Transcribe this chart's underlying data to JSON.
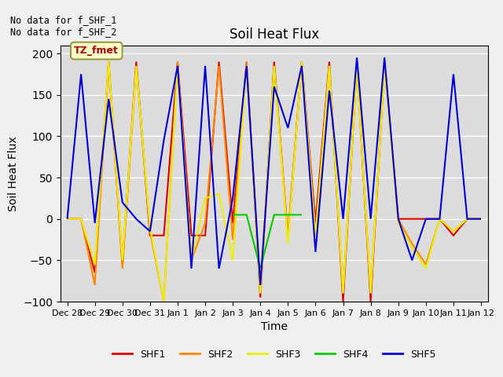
{
  "title": "Soil Heat Flux",
  "xlabel": "Time",
  "ylabel": "Soil Heat Flux",
  "ylim": [
    -100,
    210
  ],
  "yticks": [
    -100,
    -50,
    0,
    50,
    100,
    150,
    200
  ],
  "bg_color": "#dcdcdc",
  "fig_color": "#f0f0f0",
  "annotation_text": "No data for f_SHF_1\nNo data for f_SHF_2",
  "legend_box_label": "TZ_fmet",
  "series_order": [
    "SHF1",
    "SHF2",
    "SHF3",
    "SHF4",
    "SHF5"
  ],
  "series": {
    "SHF1": {
      "color": "#dd0000",
      "lw": 1.5,
      "x": [
        0,
        1,
        2,
        3,
        4,
        5,
        6,
        7,
        8,
        9,
        10,
        11,
        12,
        13,
        14,
        15,
        16,
        17,
        18,
        19,
        20,
        21,
        22,
        23,
        24,
        25,
        26,
        27,
        28,
        29,
        30
      ],
      "y": [
        0,
        0,
        -65,
        190,
        -55,
        190,
        -20,
        -20,
        190,
        -20,
        -20,
        190,
        -5,
        190,
        -95,
        190,
        -25,
        190,
        -5,
        190,
        -100,
        190,
        -100,
        190,
        0,
        0,
        0,
        0,
        -20,
        0,
        0
      ]
    },
    "SHF2": {
      "color": "#ff8800",
      "lw": 1.5,
      "x": [
        0,
        1,
        2,
        3,
        4,
        5,
        6,
        7,
        8,
        9,
        10,
        11,
        12,
        13,
        14,
        15,
        16,
        17,
        18,
        19,
        20,
        21,
        22,
        23,
        24,
        25,
        26,
        27,
        28,
        29,
        30
      ],
      "y": [
        0,
        0,
        -80,
        190,
        -60,
        185,
        -15,
        -100,
        190,
        -50,
        -5,
        185,
        -25,
        190,
        -90,
        185,
        -20,
        190,
        -20,
        185,
        -90,
        185,
        -90,
        185,
        0,
        -30,
        -55,
        0,
        -15,
        0,
        0
      ]
    },
    "SHF3": {
      "color": "#eeee00",
      "lw": 1.5,
      "x": [
        0,
        1,
        2,
        3,
        4,
        5,
        6,
        7,
        8,
        9,
        10,
        11,
        12,
        13,
        14,
        15,
        16,
        17,
        18,
        19,
        20,
        21,
        22,
        23,
        24,
        25,
        26,
        27,
        28,
        29,
        30
      ],
      "y": [
        0,
        0,
        -55,
        190,
        -50,
        185,
        -10,
        -100,
        185,
        -50,
        25,
        30,
        -50,
        185,
        -90,
        185,
        -30,
        190,
        -20,
        185,
        -90,
        185,
        -90,
        185,
        -5,
        -35,
        -60,
        0,
        -15,
        0,
        0
      ]
    },
    "SHF4": {
      "color": "#00cc00",
      "lw": 1.5,
      "x": [
        12,
        13,
        14,
        15,
        16,
        17
      ],
      "y": [
        5,
        5,
        -60,
        5,
        5,
        5
      ]
    },
    "SHF5": {
      "color": "#0000dd",
      "lw": 1.5,
      "x": [
        0,
        1,
        2,
        3,
        4,
        5,
        6,
        7,
        8,
        9,
        10,
        11,
        12,
        13,
        14,
        15,
        16,
        17,
        18,
        19,
        20,
        21,
        22,
        23,
        24,
        25,
        26,
        27,
        28,
        29,
        30
      ],
      "y": [
        0,
        175,
        -5,
        145,
        20,
        0,
        -15,
        95,
        185,
        -60,
        185,
        -60,
        25,
        185,
        -80,
        160,
        110,
        185,
        -40,
        155,
        0,
        195,
        0,
        195,
        0,
        -50,
        0,
        0,
        175,
        0,
        0
      ]
    }
  },
  "xtick_labels": [
    "Dec 28",
    "Dec 29",
    "Dec 30",
    "Dec 31",
    "Jan 1",
    "Jan 2",
    "Jan 3",
    "Jan 4",
    "Jan 5",
    "Jan 6",
    "Jan 7",
    "Jan 8",
    "Jan 9",
    "Jan 10",
    "Jan 11",
    "Jan 12"
  ],
  "xtick_positions": [
    0,
    2,
    4,
    6,
    8,
    10,
    12,
    14,
    16,
    18,
    20,
    22,
    24,
    26,
    28,
    30
  ]
}
